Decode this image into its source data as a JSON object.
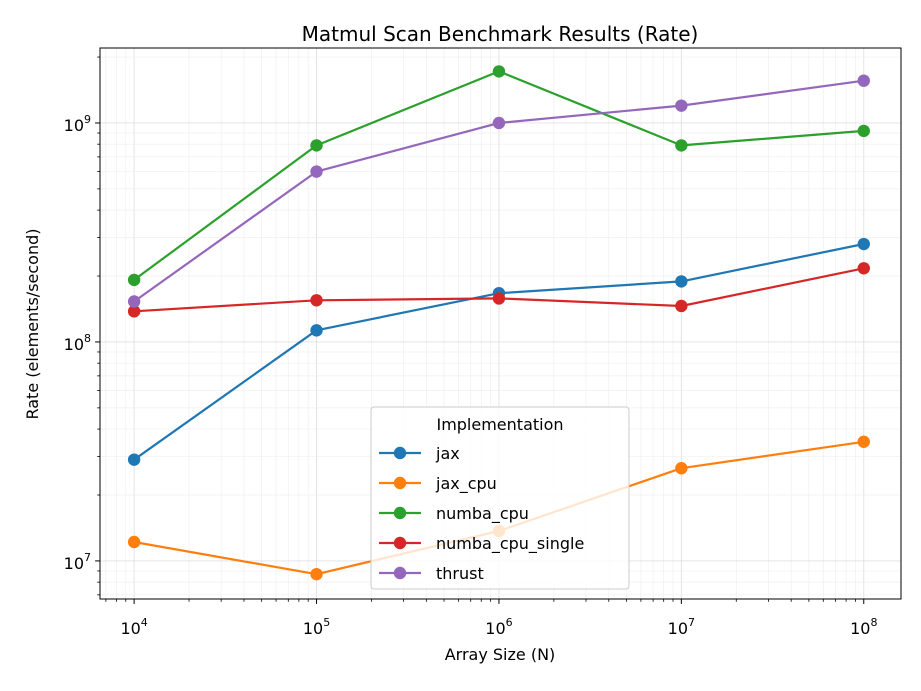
{
  "chart_data": {
    "type": "line",
    "title": "Matmul Scan Benchmark Results (Rate)",
    "xlabel": "Array Size (N)",
    "ylabel": "Rate (elements/second)",
    "xscale": "log",
    "yscale": "log",
    "xlim": [
      6500,
      160000000
    ],
    "ylim": [
      6700000,
      2200000000
    ],
    "x": [
      10000,
      100000,
      1000000,
      10000000,
      100000000
    ],
    "x_ticks": [
      {
        "value": 10000,
        "base": "10",
        "exp": "4"
      },
      {
        "value": 100000,
        "base": "10",
        "exp": "5"
      },
      {
        "value": 1000000,
        "base": "10",
        "exp": "6"
      },
      {
        "value": 10000000,
        "base": "10",
        "exp": "7"
      },
      {
        "value": 100000000,
        "base": "10",
        "exp": "8"
      }
    ],
    "y_ticks": [
      {
        "value": 10000000,
        "base": "10",
        "exp": "7"
      },
      {
        "value": 100000000,
        "base": "10",
        "exp": "8"
      },
      {
        "value": 1000000000,
        "base": "10",
        "exp": "9"
      }
    ],
    "grid": true,
    "legend": {
      "title": "Implementation",
      "placement": "lower-center"
    },
    "series": [
      {
        "name": "jax",
        "color": "#1f77b4",
        "values": [
          29000000,
          113000000,
          167000000,
          189000000,
          280000000
        ]
      },
      {
        "name": "jax_cpu",
        "color": "#ff7f0e",
        "values": [
          12200000,
          8700000,
          13700000,
          26500000,
          35000000
        ]
      },
      {
        "name": "numba_cpu",
        "color": "#2ca02c",
        "values": [
          192000000,
          790000000,
          1720000000,
          790000000,
          920000000
        ]
      },
      {
        "name": "numba_cpu_single",
        "color": "#d62728",
        "values": [
          138000000,
          155000000,
          158000000,
          146000000,
          217000000
        ]
      },
      {
        "name": "thrust",
        "color": "#9467bd",
        "values": [
          153000000,
          600000000,
          1000000000,
          1200000000,
          1560000000
        ]
      }
    ]
  }
}
